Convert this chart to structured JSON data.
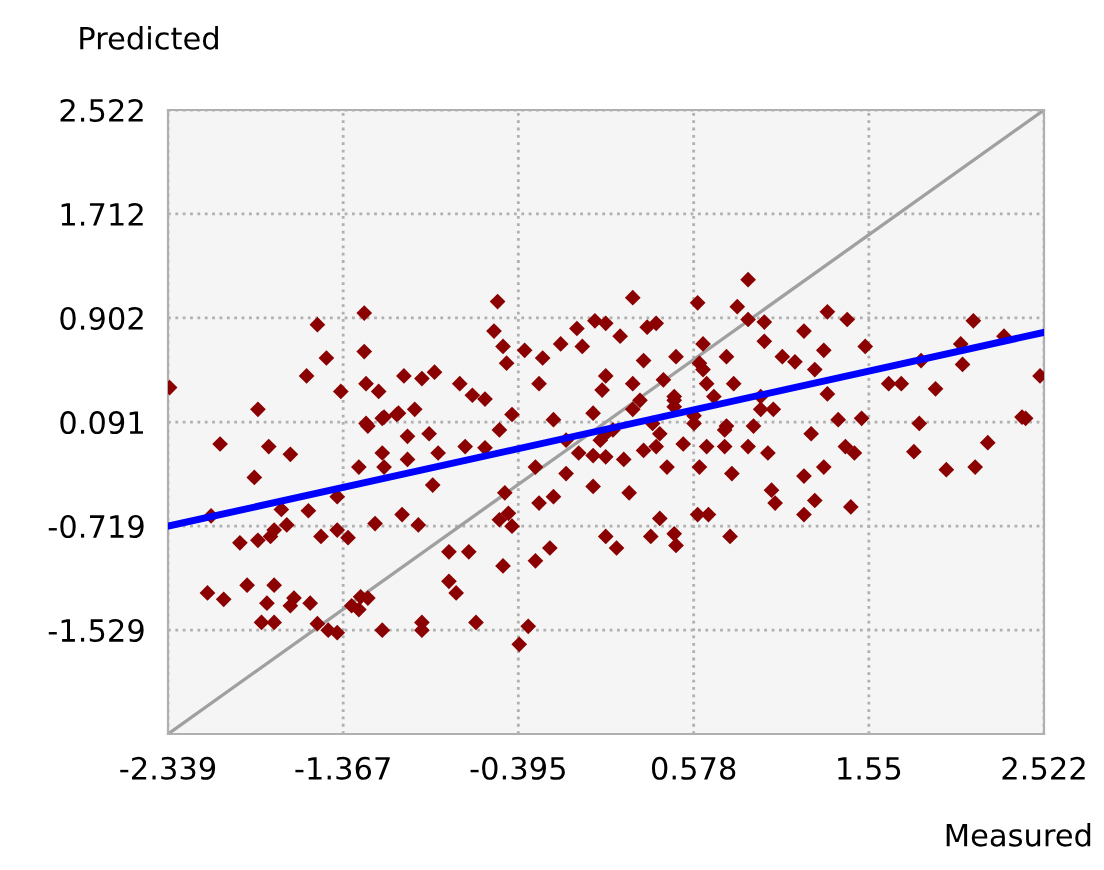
{
  "chart_data": {
    "type": "scatter",
    "xlabel": "Measured",
    "ylabel": "Predicted",
    "xlim": [
      -2.339,
      2.522
    ],
    "ylim": [
      -2.339,
      2.522
    ],
    "xticks": [
      -2.339,
      -1.367,
      -0.395,
      0.578,
      1.55,
      2.522
    ],
    "yticks": [
      -1.529,
      -0.719,
      0.091,
      0.902,
      1.712,
      2.522
    ],
    "grid": true,
    "series": [
      {
        "type": "line",
        "marker": "none",
        "color": "#a0a0a0",
        "x": [
          -2.339,
          2.522
        ],
        "values": [
          -2.339,
          2.522
        ]
      },
      {
        "marker": "diamond",
        "color": "#8b0000",
        "x": [
          -2.33,
          -1.84,
          -1.57,
          -1.46,
          -1.51,
          -1.38,
          -1.25,
          -1.25,
          -1.24,
          -1.17,
          -1.03,
          -0.93,
          -0.86,
          -0.72,
          -0.65,
          -0.58,
          -0.51,
          -0.53,
          -0.48,
          -0.46,
          -0.36,
          -0.26,
          -0.16,
          -0.07,
          0.03,
          -0.04,
          -0.28,
          -0.43,
          -0.97,
          -1.07,
          -1.15,
          -1.24,
          0.88,
          0.6,
          0.24,
          0.82,
          0.88,
          0.97,
          1.32,
          1.43,
          1.19,
          1.07,
          1.14,
          1.3,
          1.53,
          1.84,
          2.06,
          2.13,
          2.3,
          2.07,
          1.66,
          1.73,
          1.92,
          2.5,
          2.4,
          1.83,
          1.51,
          1.38,
          1.32,
          1.25,
          0.97,
          0.76,
          0.63,
          0.48,
          0.3,
          0.17,
          0.32,
          0.37,
          0.09,
          0.61,
          0.8,
          0.95,
          1.02,
          0.65,
          0.47,
          0.24,
          0.09,
          -2.05,
          -1.78,
          -1.66,
          -1.86,
          -2.1,
          -1.71,
          -1.56,
          -1.68,
          -1.75,
          -1.77,
          -1.94,
          -1.84,
          -1.49,
          -1.4,
          -1.34,
          -1.19,
          -1.04,
          -0.95,
          -0.78,
          -0.67,
          -0.78,
          -0.74,
          -0.48,
          -0.3,
          -0.22,
          -2.12,
          -2.03,
          -1.9,
          -1.75,
          -1.79,
          -1.64,
          -1.66,
          -1.55,
          -1.82,
          -1.75,
          -1.51,
          -1.45,
          -1.4,
          -1.32,
          -1.27,
          -1.23,
          -1.28,
          -1.15,
          -0.93,
          -0.93,
          -0.63,
          -0.39,
          -0.34,
          -0.5,
          -0.45,
          -0.43,
          -0.28,
          -0.2,
          -0.47,
          -1.28,
          -1.15,
          -1.14,
          -0.87,
          -1.01,
          -0.84,
          -0.69,
          -0.58,
          -0.5,
          -1.23,
          -1.14,
          -1.06,
          -0.89,
          -1.01,
          -0.3,
          -0.13,
          0.02,
          -1.4,
          -0.2,
          -0.13,
          -0.06,
          0.02,
          0.09,
          2.42,
          2.21,
          2.14,
          1.98,
          1.8,
          1.45,
          1.25,
          1.19,
          1.19,
          1.3,
          1.47,
          1.42,
          1.23,
          1.01,
          1.03,
          0.99,
          0.79,
          0.88,
          0.75,
          0.65,
          0.61,
          0.43,
          0.37,
          0.22,
          0.09,
          0.15,
          0.34,
          0.39,
          0.47,
          0.48,
          0.6,
          0.66,
          0.78,
          0.91,
          0.76,
          0.58,
          0.39,
          0.09,
          0.06,
          0.24,
          0.47,
          0.95,
          0.13,
          0.28,
          0.35,
          0.47,
          0.58,
          0.69,
          0.3,
          0.52,
          0.19,
          0.02,
          0.75,
          0.41,
          0.63,
          0.07
        ],
        "values": [
          0.36,
          0.19,
          0.45,
          0.59,
          0.85,
          0.33,
          0.94,
          0.64,
          0.39,
          0.33,
          0.45,
          0.43,
          0.48,
          0.39,
          0.3,
          0.27,
          1.03,
          0.8,
          0.68,
          0.55,
          0.65,
          0.59,
          0.7,
          0.82,
          0.88,
          0.68,
          0.39,
          0.15,
          0.19,
          0.15,
          0.12,
          0.08,
          1.2,
          1.02,
          1.06,
          0.99,
          0.89,
          0.87,
          0.95,
          0.89,
          0.8,
          0.6,
          0.56,
          0.65,
          0.68,
          0.57,
          0.7,
          0.88,
          0.76,
          0.54,
          0.39,
          0.39,
          0.35,
          0.45,
          0.13,
          0.08,
          0.12,
          0.11,
          0.31,
          0.5,
          0.72,
          0.6,
          0.7,
          0.6,
          0.57,
          0.76,
          0.83,
          0.86,
          0.86,
          0.55,
          0.39,
          0.29,
          0.19,
          0.39,
          0.29,
          0.39,
          0.45,
          -0.08,
          -0.1,
          -0.16,
          -0.34,
          -0.64,
          -0.59,
          -0.6,
          -0.71,
          -0.75,
          -0.8,
          -0.85,
          -0.83,
          -0.8,
          -0.75,
          -0.81,
          -0.7,
          -0.63,
          -0.71,
          -0.92,
          -0.92,
          -1.15,
          -1.24,
          -1.03,
          -0.99,
          -0.89,
          -1.24,
          -1.29,
          -1.18,
          -1.18,
          -1.32,
          -1.28,
          -1.34,
          -1.32,
          -1.47,
          -1.47,
          -1.48,
          -1.53,
          -1.55,
          -1.34,
          -1.27,
          -1.28,
          -1.37,
          -1.53,
          -1.47,
          -1.53,
          -1.47,
          -1.64,
          -1.5,
          -0.67,
          -0.62,
          -0.72,
          -0.54,
          -0.49,
          -0.46,
          -0.26,
          -0.15,
          -0.26,
          -0.4,
          -0.2,
          -0.15,
          -0.1,
          -0.11,
          0.03,
          0.06,
          0.13,
          0.16,
          0.0,
          -0.02,
          -0.26,
          -0.31,
          -0.41,
          -0.49,
          0.11,
          -0.05,
          -0.15,
          0.16,
          0.0,
          0.12,
          -0.07,
          -0.26,
          -0.28,
          -0.14,
          -0.57,
          -0.52,
          -0.63,
          -0.33,
          -0.26,
          -0.15,
          -0.1,
          0.0,
          -0.44,
          -0.54,
          -0.15,
          -0.31,
          -0.1,
          -0.1,
          -0.1,
          -0.26,
          -0.26,
          -0.1,
          -0.46,
          -0.8,
          -0.89,
          -0.8,
          -0.66,
          -0.78,
          -0.87,
          -0.63,
          -0.63,
          -0.8,
          0.06,
          0.06,
          0.08,
          0.0,
          -0.18,
          -0.05,
          0.19,
          0.21,
          0.19,
          0.03,
          0.26,
          0.08,
          0.26,
          0.14,
          0.29,
          -0.13,
          -0.08,
          -0.2,
          -0.17,
          0.03,
          0.42,
          0.5,
          0.34
        ]
      },
      {
        "type": "line",
        "marker": "none",
        "color": "#0000ff",
        "x": [
          -2.339,
          2.522
        ],
        "values": [
          -0.72,
          0.79
        ]
      }
    ]
  }
}
